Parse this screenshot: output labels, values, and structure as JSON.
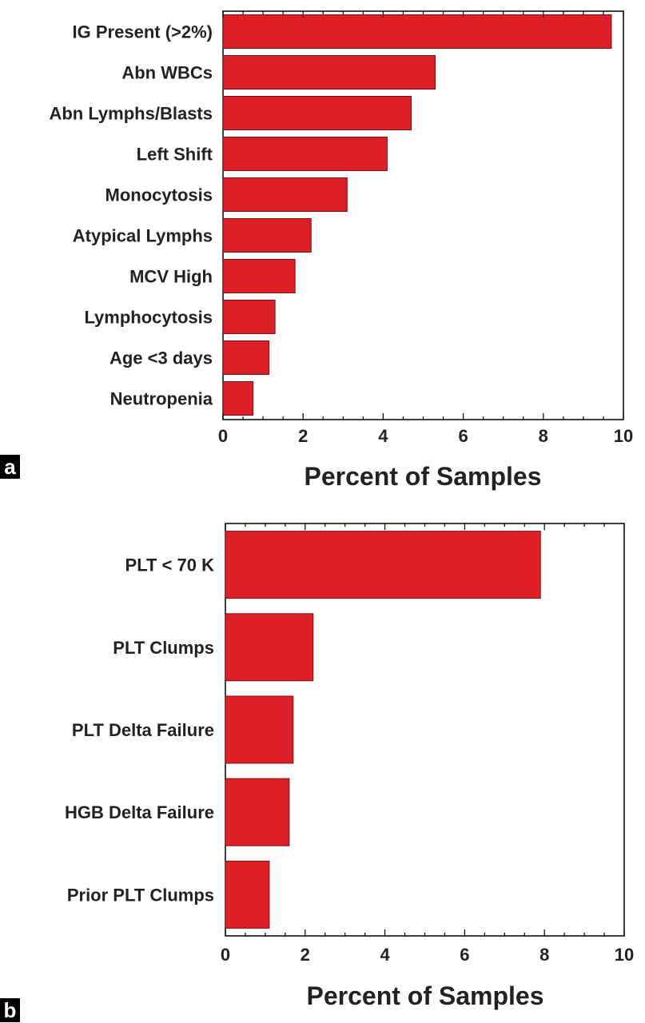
{
  "chart_data": [
    {
      "type": "bar",
      "orientation": "horizontal",
      "panel_label": "a",
      "categories": [
        "IG Present (>2%)",
        "Abn WBCs",
        "Abn Lymphs/Blasts",
        "Left Shift",
        "Monocytosis",
        "Atypical Lymphs",
        "MCV High",
        "Lymphocytosis",
        "Age <3 days",
        "Neutropenia"
      ],
      "values": [
        9.7,
        5.3,
        4.7,
        4.1,
        3.1,
        2.2,
        1.8,
        1.3,
        1.15,
        0.75
      ],
      "xlabel": "Percent of Samples",
      "xlim": [
        0,
        10
      ],
      "xticks": [
        "0",
        "2",
        "4",
        "6",
        "8",
        "10"
      ],
      "bar_color": "#dd2027",
      "grid": false
    },
    {
      "type": "bar",
      "orientation": "horizontal",
      "panel_label": "b",
      "categories": [
        "PLT < 70 K",
        "PLT Clumps",
        "PLT Delta Failure",
        "HGB Delta Failure",
        "Prior PLT Clumps"
      ],
      "values": [
        7.9,
        2.2,
        1.7,
        1.6,
        1.1
      ],
      "xlabel": "Percent of Samples",
      "xlim": [
        0,
        10
      ],
      "xticks": [
        "0",
        "2",
        "4",
        "6",
        "8",
        "10"
      ],
      "bar_color": "#dd2027",
      "grid": false
    }
  ]
}
